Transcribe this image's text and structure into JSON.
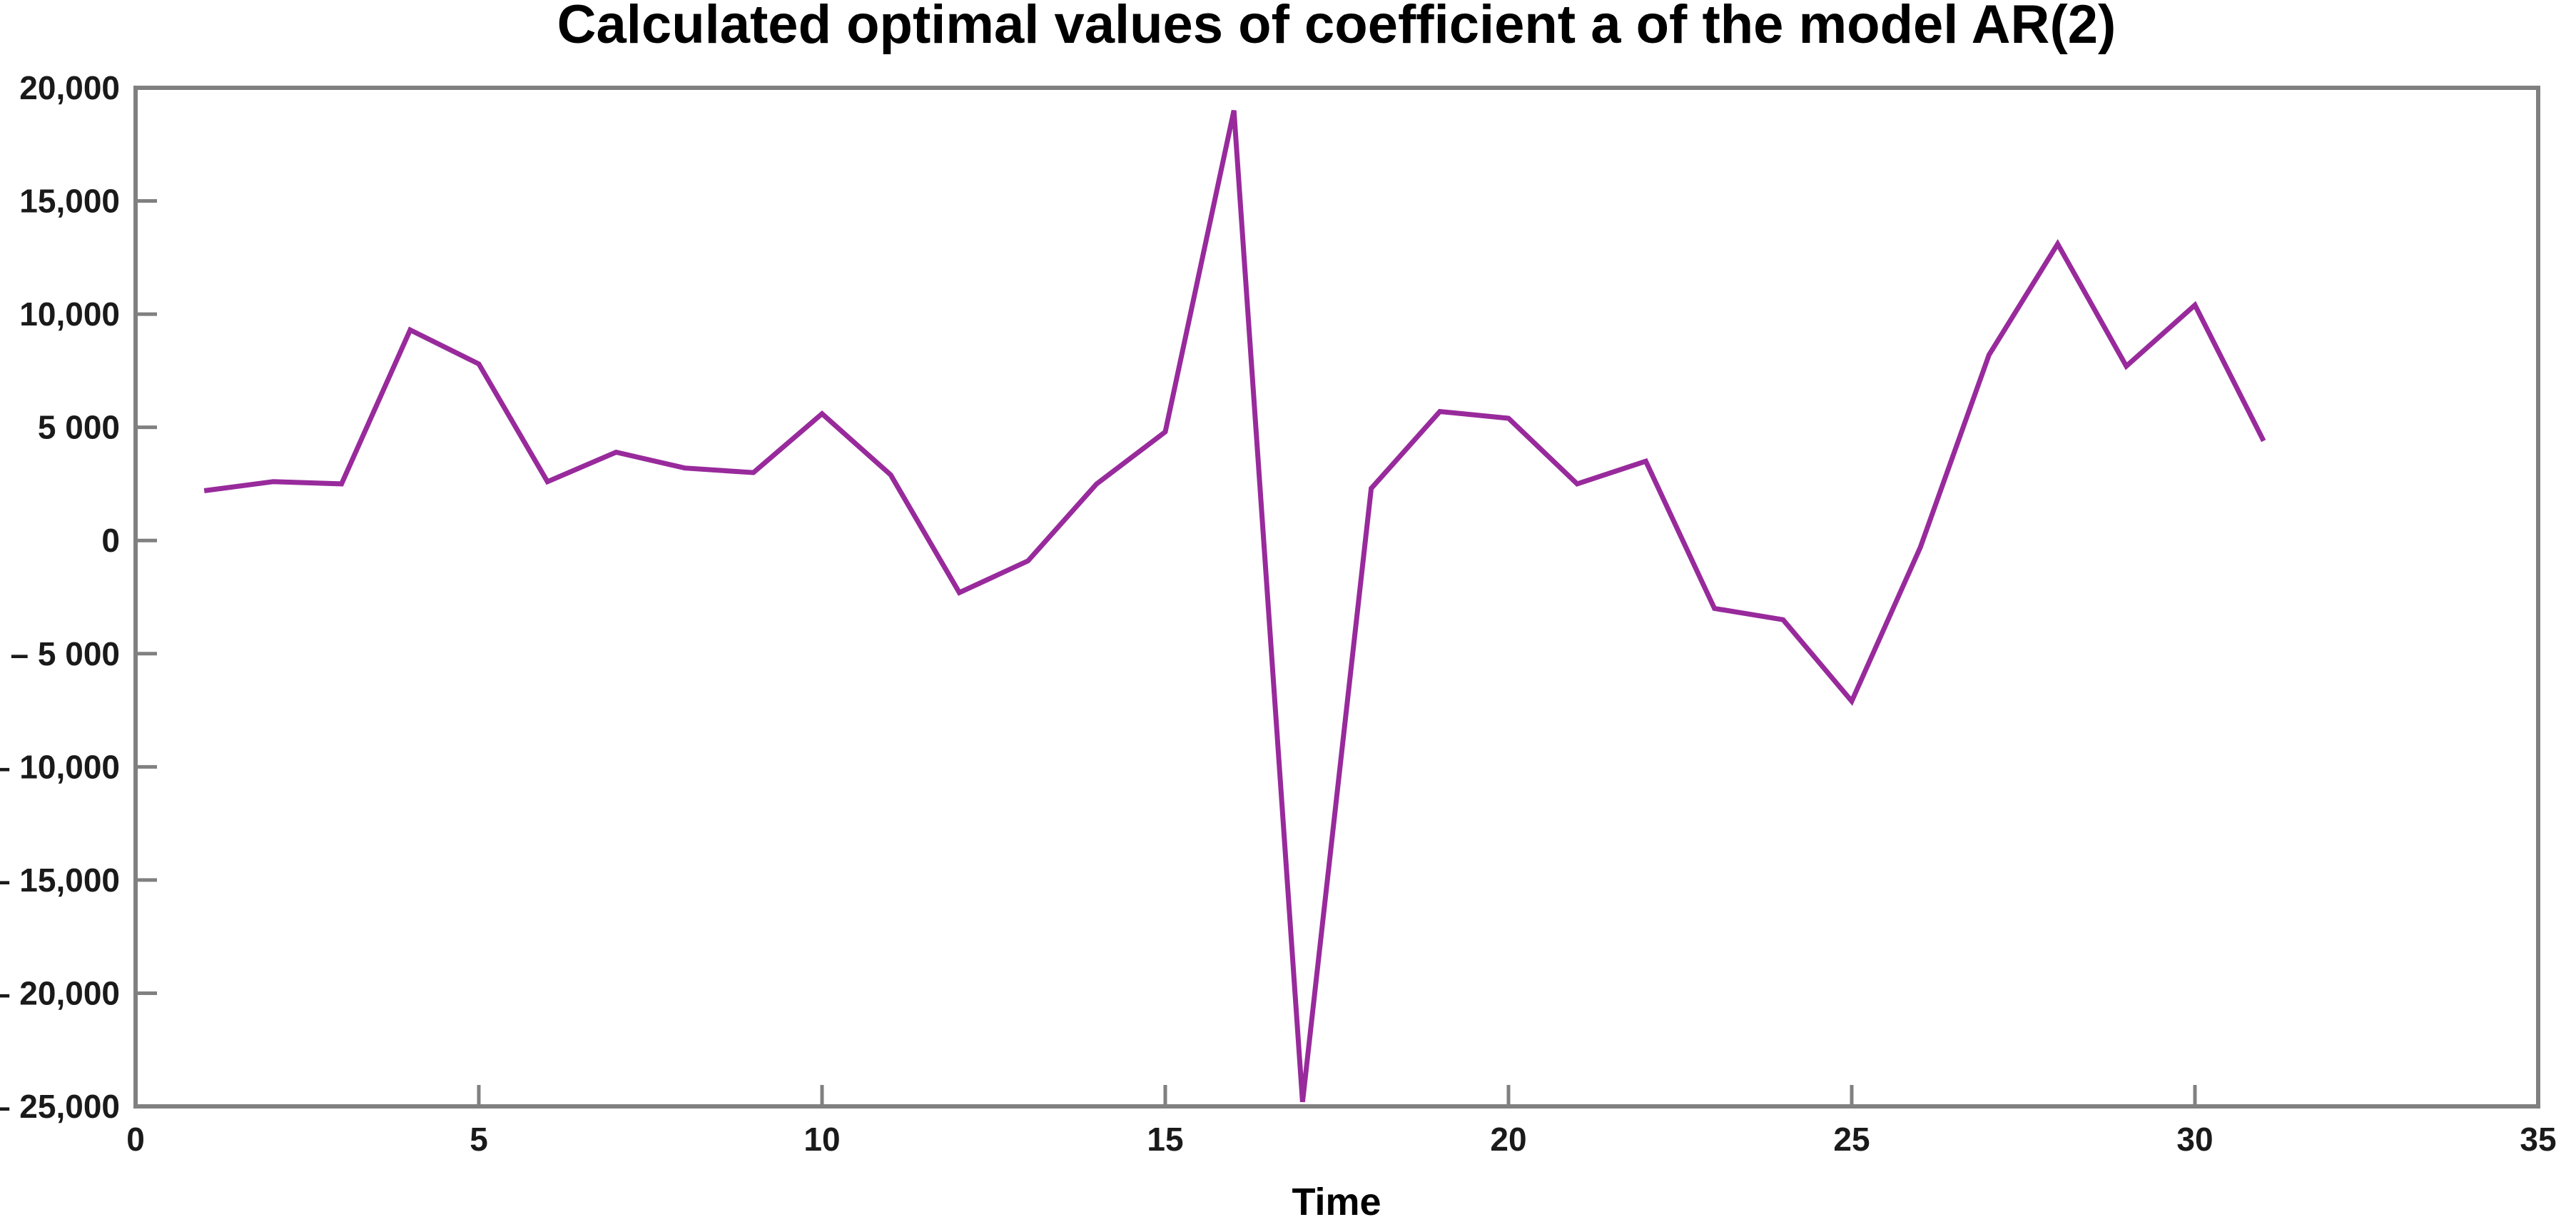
{
  "chart_data": {
    "type": "line",
    "title": "Calculated optimal values of coefficient a of the model AR(2)",
    "xlabel": "Time",
    "ylabel": "",
    "xlim": [
      0,
      35
    ],
    "ylim": [
      -25000,
      20000
    ],
    "grid": false,
    "legend": "none",
    "x": [
      1,
      2,
      3,
      4,
      5,
      6,
      7,
      8,
      9,
      10,
      11,
      12,
      13,
      14,
      15,
      16,
      17,
      18,
      19,
      20,
      21,
      22,
      23,
      24,
      25,
      26,
      27,
      28,
      29,
      30,
      31
    ],
    "values": [
      2200,
      2600,
      2500,
      9300,
      7800,
      2600,
      3900,
      3200,
      3000,
      5600,
      2900,
      -2300,
      -900,
      2500,
      4800,
      19000,
      -24800,
      2300,
      5700,
      5400,
      2500,
      3500,
      -3000,
      -3500,
      -7100,
      -300,
      8200,
      13100,
      7700,
      10400,
      4400
    ],
    "x_ticks": [
      {
        "value": 0,
        "label": "0"
      },
      {
        "value": 5,
        "label": "5"
      },
      {
        "value": 10,
        "label": "10"
      },
      {
        "value": 15,
        "label": "15"
      },
      {
        "value": 20,
        "label": "20"
      },
      {
        "value": 25,
        "label": "25"
      },
      {
        "value": 30,
        "label": "30"
      },
      {
        "value": 35,
        "label": "35"
      }
    ],
    "y_ticks": [
      {
        "value": 20000,
        "label": "20,000"
      },
      {
        "value": 15000,
        "label": "15,000"
      },
      {
        "value": 10000,
        "label": "10,000"
      },
      {
        "value": 5000,
        "label": "5 000"
      },
      {
        "value": 0,
        "label": "0"
      },
      {
        "value": -5000,
        "label": "– 5 000"
      },
      {
        "value": -10000,
        "label": "– 10,000"
      },
      {
        "value": -15000,
        "label": "– 15,000"
      },
      {
        "value": -20000,
        "label": "– 20,000"
      },
      {
        "value": -25000,
        "label": "– 25,000"
      }
    ],
    "colors": {
      "line": "#982a9c",
      "axis": "#808080",
      "tick_text": "#1a1a1a",
      "title_text": "#000000",
      "background": "#ffffff"
    }
  }
}
